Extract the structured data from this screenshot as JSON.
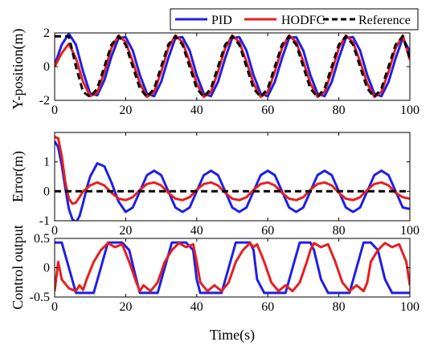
{
  "colors": {
    "pid": "#1f1fe6",
    "hodfc": "#e61f1f",
    "reference": "#000000",
    "axis": "#000000"
  },
  "legend": {
    "items": [
      "PID",
      "HODFC",
      "Reference"
    ],
    "placement": "top-right"
  },
  "chart_data": [
    {
      "type": "line",
      "title": "",
      "xlabel": "",
      "ylabel": "Y-position(m)",
      "xlim": [
        0,
        100
      ],
      "ylim": [
        -2,
        2
      ],
      "xticks": [
        0,
        20,
        40,
        60,
        80,
        100
      ],
      "yticks": [
        -2,
        0,
        2
      ],
      "xtick_labels": [
        "0",
        "20",
        "40",
        "60",
        "80",
        "100"
      ],
      "ytick_labels": [
        "-2",
        "0",
        "2"
      ],
      "grid": false,
      "x": [
        0,
        2,
        4,
        6,
        8,
        10,
        12,
        14,
        16,
        18,
        20,
        22,
        24,
        26,
        28,
        30,
        32,
        34,
        36,
        38,
        40,
        42,
        44,
        46,
        48,
        50,
        52,
        54,
        56,
        58,
        60,
        62,
        64,
        66,
        68,
        70,
        72,
        74,
        76,
        78,
        80,
        82,
        84,
        86,
        88,
        90,
        92,
        94,
        96,
        98,
        100
      ],
      "series": [
        {
          "name": "PID",
          "values": [
            0.1,
            1.3,
            1.95,
            1.3,
            -0.3,
            -1.6,
            -1.7,
            -0.8,
            0.6,
            1.7,
            1.75,
            0.95,
            -0.5,
            -1.6,
            -1.75,
            -0.9,
            0.5,
            1.7,
            1.75,
            0.95,
            -0.5,
            -1.6,
            -1.75,
            -0.9,
            0.5,
            1.7,
            1.75,
            0.95,
            -0.5,
            -1.6,
            -1.75,
            -0.9,
            0.5,
            1.7,
            1.75,
            0.95,
            -0.5,
            -1.6,
            -1.75,
            -0.9,
            0.5,
            1.7,
            1.75,
            0.95,
            -0.5,
            -1.6,
            -1.75,
            -0.9,
            0.5,
            1.7,
            0.9
          ]
        },
        {
          "name": "HODFC",
          "values": [
            0.0,
            0.8,
            1.35,
            0.5,
            -0.9,
            -1.75,
            -1.55,
            -0.3,
            1.1,
            1.85,
            1.45,
            0.3,
            -1.0,
            -1.8,
            -1.5,
            -0.3,
            1.1,
            1.85,
            1.45,
            0.3,
            -1.0,
            -1.8,
            -1.5,
            -0.3,
            1.1,
            1.85,
            1.45,
            0.3,
            -1.0,
            -1.8,
            -1.5,
            -0.3,
            1.1,
            1.85,
            1.45,
            0.3,
            -1.0,
            -1.8,
            -1.5,
            -0.3,
            1.1,
            1.85,
            1.45,
            0.3,
            -1.0,
            -1.8,
            -1.5,
            -0.3,
            1.1,
            1.85,
            0.4
          ]
        },
        {
          "name": "Reference",
          "values": [
            1.8,
            1.8,
            1.8,
            0.0,
            -1.5,
            -1.8,
            -1.3,
            0.0,
            1.3,
            1.8,
            1.3,
            0.0,
            -1.3,
            -1.8,
            -1.3,
            0.0,
            1.3,
            1.8,
            1.3,
            0.0,
            -1.3,
            -1.8,
            -1.3,
            0.0,
            1.3,
            1.8,
            1.3,
            0.0,
            -1.3,
            -1.8,
            -1.3,
            0.0,
            1.3,
            1.8,
            1.3,
            0.0,
            -1.3,
            -1.8,
            -1.3,
            0.0,
            1.3,
            1.8,
            1.3,
            0.0,
            -1.3,
            -1.8,
            -1.3,
            0.0,
            1.3,
            1.8,
            0.5
          ]
        }
      ]
    },
    {
      "type": "line",
      "title": "",
      "xlabel": "",
      "ylabel": "Error(m)",
      "xlim": [
        0,
        100
      ],
      "ylim": [
        -1,
        2
      ],
      "xticks": [
        0,
        20,
        40,
        60,
        80,
        100
      ],
      "yticks": [
        -1,
        0,
        1
      ],
      "xtick_labels": [
        "0",
        "20",
        "40",
        "60",
        "80",
        "100"
      ],
      "ytick_labels": [
        "-1",
        "0",
        "1"
      ],
      "grid": false,
      "x": [
        0,
        1,
        2,
        3,
        4,
        5,
        6,
        7,
        8,
        9,
        10,
        12,
        14,
        16,
        18,
        20,
        22,
        24,
        26,
        28,
        30,
        32,
        34,
        36,
        38,
        40,
        42,
        44,
        46,
        48,
        50,
        52,
        54,
        56,
        58,
        60,
        62,
        64,
        66,
        68,
        70,
        72,
        74,
        76,
        78,
        80,
        82,
        84,
        86,
        88,
        90,
        92,
        94,
        96,
        98,
        100
      ],
      "series": [
        {
          "name": "PID",
          "values": [
            1.7,
            1.5,
            0.9,
            0.1,
            -0.6,
            -0.95,
            -1.05,
            -0.85,
            -0.4,
            0.1,
            0.5,
            0.95,
            0.85,
            0.3,
            -0.35,
            -0.7,
            -0.55,
            0.0,
            0.55,
            0.7,
            0.55,
            0.0,
            -0.55,
            -0.7,
            -0.55,
            0.0,
            0.55,
            0.7,
            0.55,
            0.0,
            -0.55,
            -0.7,
            -0.55,
            0.0,
            0.55,
            0.7,
            0.55,
            0.0,
            -0.55,
            -0.7,
            -0.55,
            0.0,
            0.55,
            0.7,
            0.55,
            0.0,
            -0.55,
            -0.7,
            -0.55,
            0.0,
            0.55,
            0.7,
            0.55,
            0.0,
            -0.55,
            -0.6
          ]
        },
        {
          "name": "HODFC",
          "values": [
            1.85,
            1.8,
            1.2,
            0.3,
            -0.25,
            -0.42,
            -0.38,
            -0.2,
            0.0,
            0.1,
            0.2,
            0.3,
            0.2,
            -0.05,
            -0.25,
            -0.3,
            -0.2,
            0.05,
            0.25,
            0.3,
            0.2,
            -0.05,
            -0.25,
            -0.3,
            -0.2,
            0.05,
            0.25,
            0.3,
            0.2,
            -0.05,
            -0.25,
            -0.3,
            -0.2,
            0.05,
            0.25,
            0.3,
            0.2,
            -0.05,
            -0.25,
            -0.3,
            -0.2,
            0.05,
            0.25,
            0.3,
            0.2,
            -0.05,
            -0.25,
            -0.3,
            -0.2,
            0.05,
            0.25,
            0.3,
            0.2,
            -0.05,
            -0.2,
            -0.25
          ]
        },
        {
          "name": "Reference",
          "values": [
            0,
            0,
            0,
            0,
            0,
            0,
            0,
            0,
            0,
            0,
            0,
            0,
            0,
            0,
            0,
            0,
            0,
            0,
            0,
            0,
            0,
            0,
            0,
            0,
            0,
            0,
            0,
            0,
            0,
            0,
            0,
            0,
            0,
            0,
            0,
            0,
            0,
            0,
            0,
            0,
            0,
            0,
            0,
            0,
            0,
            0,
            0,
            0,
            0,
            0,
            0,
            0,
            0,
            0,
            0,
            0
          ]
        }
      ]
    },
    {
      "type": "line",
      "title": "",
      "xlabel": "Time(s)",
      "ylabel": "Control output",
      "xlim": [
        0,
        100
      ],
      "ylim": [
        -0.5,
        0.5
      ],
      "xticks": [
        0,
        20,
        40,
        60,
        80,
        100
      ],
      "yticks": [
        -0.5,
        0,
        0.5
      ],
      "xtick_labels": [
        "0",
        "20",
        "40",
        "60",
        "80",
        "100"
      ],
      "ytick_labels": [
        "-0.5",
        "0",
        "0.5"
      ],
      "grid": false,
      "x": [
        0,
        1,
        2,
        4,
        6,
        7,
        8,
        9,
        11,
        13,
        15,
        17,
        19,
        21,
        23,
        24,
        25,
        27,
        29,
        31,
        33,
        35,
        37,
        39,
        40,
        41,
        43,
        45,
        47,
        49,
        51,
        53,
        55,
        56,
        57,
        59,
        61,
        63,
        65,
        67,
        69,
        71,
        72,
        73,
        75,
        77,
        79,
        81,
        83,
        85,
        87,
        88,
        89,
        91,
        93,
        95,
        97,
        99,
        100
      ],
      "series": [
        {
          "name": "PID",
          "values": [
            0.43,
            0.43,
            0.43,
            0.0,
            -0.43,
            -0.43,
            -0.43,
            -0.43,
            -0.43,
            0.0,
            0.43,
            0.43,
            0.43,
            0.3,
            -0.2,
            -0.43,
            -0.43,
            -0.43,
            -0.43,
            0.0,
            0.43,
            0.43,
            0.43,
            0.3,
            -0.2,
            -0.43,
            -0.43,
            -0.43,
            -0.43,
            0.0,
            0.43,
            0.43,
            0.43,
            0.3,
            -0.2,
            -0.43,
            -0.43,
            -0.43,
            -0.43,
            0.0,
            0.43,
            0.43,
            0.43,
            0.3,
            -0.2,
            -0.43,
            -0.43,
            -0.43,
            -0.43,
            0.0,
            0.43,
            0.43,
            0.43,
            0.3,
            -0.2,
            -0.43,
            -0.43,
            -0.43,
            -0.43
          ]
        },
        {
          "name": "HODFC",
          "values": [
            -0.4,
            0.1,
            -0.2,
            -0.35,
            -0.4,
            -0.3,
            -0.38,
            -0.2,
            0.1,
            0.3,
            0.42,
            0.35,
            0.4,
            0.1,
            -0.25,
            -0.4,
            -0.3,
            -0.4,
            -0.25,
            0.1,
            0.3,
            0.42,
            0.35,
            0.4,
            0.1,
            -0.25,
            -0.4,
            -0.3,
            -0.4,
            -0.25,
            0.1,
            0.3,
            0.42,
            0.35,
            0.4,
            0.1,
            -0.25,
            -0.4,
            -0.3,
            -0.4,
            -0.25,
            0.1,
            0.3,
            0.42,
            0.35,
            0.4,
            0.1,
            -0.25,
            -0.4,
            -0.3,
            -0.4,
            -0.25,
            0.1,
            0.3,
            0.42,
            0.35,
            0.4,
            0.1,
            -0.3
          ]
        }
      ]
    }
  ]
}
